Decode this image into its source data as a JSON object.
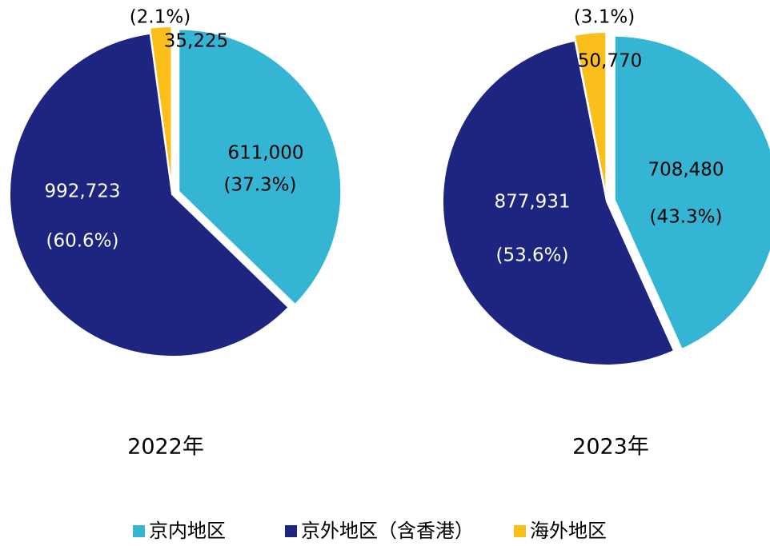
{
  "legend": {
    "categories": [
      "京内地区",
      "京外地区（含香港）",
      "海外地区"
    ],
    "colors": [
      "#33b5d3",
      "#1e2580",
      "#fbbf1c"
    ]
  },
  "chart_data": [
    {
      "type": "pie",
      "title": "2022年",
      "values": [
        611000,
        992723,
        35225
      ],
      "value_labels": [
        "611,000",
        "992,723",
        "35,225"
      ],
      "percents": [
        37.3,
        60.6,
        2.1
      ],
      "percent_labels": [
        "(37.3%)",
        "(60.6%)",
        "(2.1%)"
      ]
    },
    {
      "type": "pie",
      "title": "2023年",
      "values": [
        708480,
        877931,
        50770
      ],
      "value_labels": [
        "708,480",
        "877,931",
        "50,770"
      ],
      "percents": [
        43.3,
        53.6,
        3.1
      ],
      "percent_labels": [
        "(43.3%)",
        "(53.6%)",
        "(3.1%)"
      ]
    }
  ]
}
